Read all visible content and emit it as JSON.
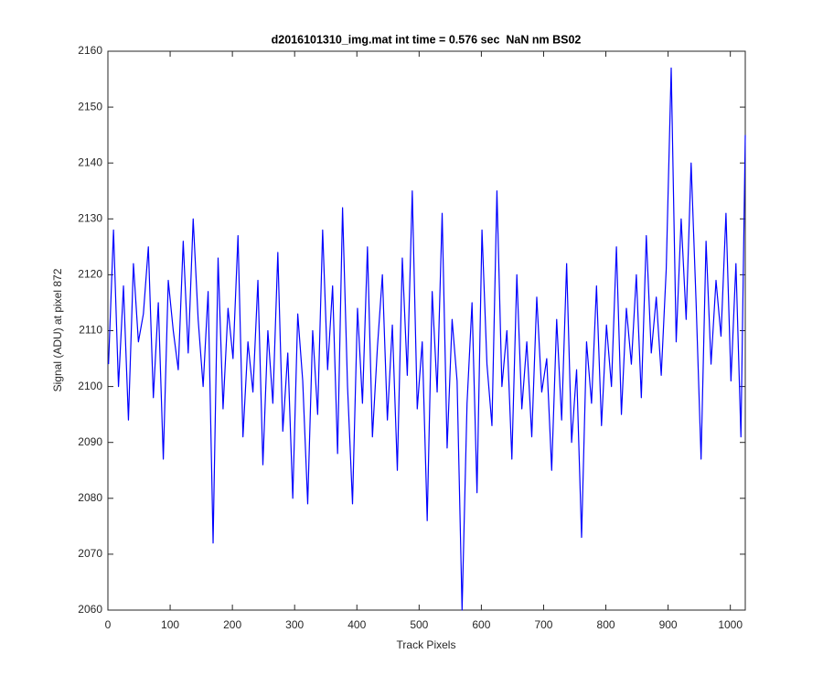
{
  "chart_data": {
    "type": "line",
    "title": "d2016101310_img.mat int time = 0.576 sec  NaN nm BS02",
    "x_label": "Track Pixels",
    "y_label": "Signal (ADU) at pixel 872",
    "x": [
      1,
      9,
      17,
      25,
      33,
      41,
      49,
      57,
      65,
      73,
      81,
      89,
      97,
      105,
      113,
      121,
      129,
      137,
      145,
      153,
      161,
      169,
      177,
      185,
      193,
      201,
      209,
      217,
      225,
      233,
      241,
      249,
      257,
      265,
      273,
      281,
      289,
      297,
      305,
      313,
      321,
      329,
      337,
      345,
      353,
      361,
      369,
      377,
      385,
      393,
      401,
      409,
      417,
      425,
      433,
      441,
      449,
      457,
      465,
      473,
      481,
      489,
      497,
      505,
      513,
      521,
      529,
      537,
      545,
      553,
      561,
      569,
      577,
      585,
      593,
      601,
      609,
      617,
      625,
      633,
      641,
      649,
      657,
      665,
      673,
      681,
      689,
      697,
      705,
      713,
      721,
      729,
      737,
      745,
      753,
      761,
      769,
      777,
      785,
      793,
      801,
      809,
      817,
      825,
      833,
      841,
      849,
      857,
      865,
      873,
      881,
      889,
      897,
      905,
      913,
      921,
      929,
      937,
      945,
      953,
      961,
      969,
      977,
      985,
      993,
      1001,
      1009,
      1017,
      1024
    ],
    "series": [
      {
        "color": "#0000ff",
        "values": [
          2104,
          2128,
          2100,
          2118,
          2094,
          2122,
          2108,
          2113,
          2125,
          2098,
          2115,
          2087,
          2119,
          2110,
          2103,
          2126,
          2106,
          2130,
          2112,
          2100,
          2117,
          2072,
          2123,
          2096,
          2114,
          2105,
          2127,
          2091,
          2108,
          2099,
          2119,
          2086,
          2110,
          2097,
          2124,
          2092,
          2106,
          2080,
          2113,
          2101,
          2079,
          2110,
          2095,
          2128,
          2103,
          2118,
          2088,
          2132,
          2100,
          2079,
          2114,
          2097,
          2125,
          2091,
          2107,
          2120,
          2094,
          2111,
          2085,
          2123,
          2102,
          2135,
          2096,
          2108,
          2076,
          2117,
          2099,
          2131,
          2089,
          2112,
          2101,
          2060,
          2097,
          2115,
          2081,
          2128,
          2104,
          2093,
          2135,
          2100,
          2110,
          2087,
          2120,
          2096,
          2108,
          2091,
          2116,
          2099,
          2105,
          2085,
          2112,
          2094,
          2122,
          2090,
          2103,
          2073,
          2108,
          2097,
          2118,
          2093,
          2111,
          2100,
          2125,
          2095,
          2114,
          2104,
          2120,
          2098,
          2127,
          2106,
          2116,
          2102,
          2121,
          2157,
          2108,
          2130,
          2112,
          2140,
          2115,
          2087,
          2126,
          2104,
          2119,
          2109,
          2131,
          2101,
          2122,
          2091,
          2145
        ]
      }
    ],
    "xlim": [
      0,
      1024
    ],
    "ylim": [
      2060,
      2160
    ],
    "xticks": [
      0,
      100,
      200,
      300,
      400,
      500,
      600,
      700,
      800,
      900,
      1000
    ],
    "yticks": [
      2060,
      2070,
      2080,
      2090,
      2100,
      2110,
      2120,
      2130,
      2140,
      2150,
      2160
    ],
    "grid": false
  }
}
